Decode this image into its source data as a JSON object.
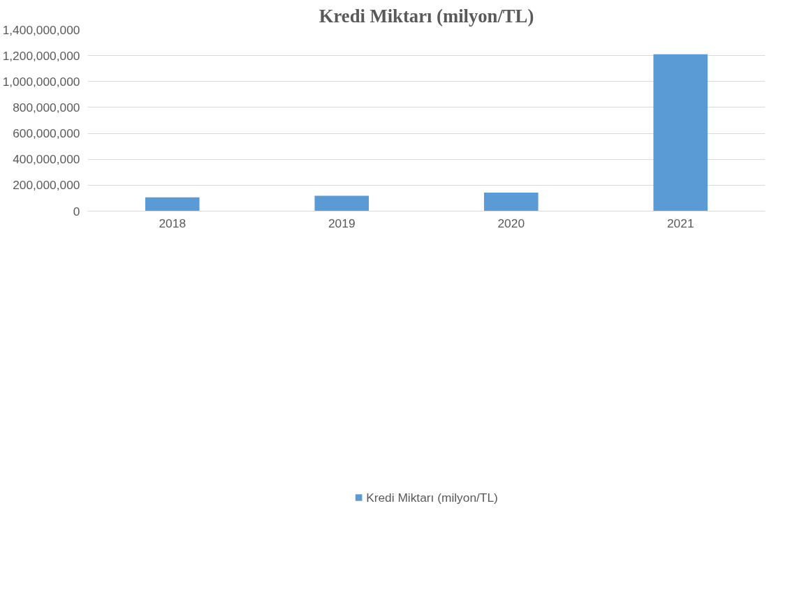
{
  "chart_data": {
    "type": "bar",
    "title": "Kredi Miktarı (milyon/TL)",
    "categories": [
      "2018",
      "2019",
      "2020",
      "2021"
    ],
    "series": [
      {
        "name": "Kredi Miktarı (milyon/TL)",
        "color": "#5b9bd5",
        "values": [
          106000000,
          118000000,
          143000000,
          1210000000
        ]
      }
    ],
    "ylim": [
      0,
      1400000000
    ],
    "yticks": [
      {
        "value": 0,
        "label": "0"
      },
      {
        "value": 200000000,
        "label": "200,000,000"
      },
      {
        "value": 400000000,
        "label": "400,000,000"
      },
      {
        "value": 600000000,
        "label": "600,000,000"
      },
      {
        "value": 800000000,
        "label": "800,000,000"
      },
      {
        "value": 1000000000,
        "label": "1,000,000,000"
      },
      {
        "value": 1200000000,
        "label": "1,200,000,000"
      },
      {
        "value": 1400000000,
        "label": "1,400,000,000"
      }
    ],
    "grid": "y",
    "legend": "bottom"
  }
}
